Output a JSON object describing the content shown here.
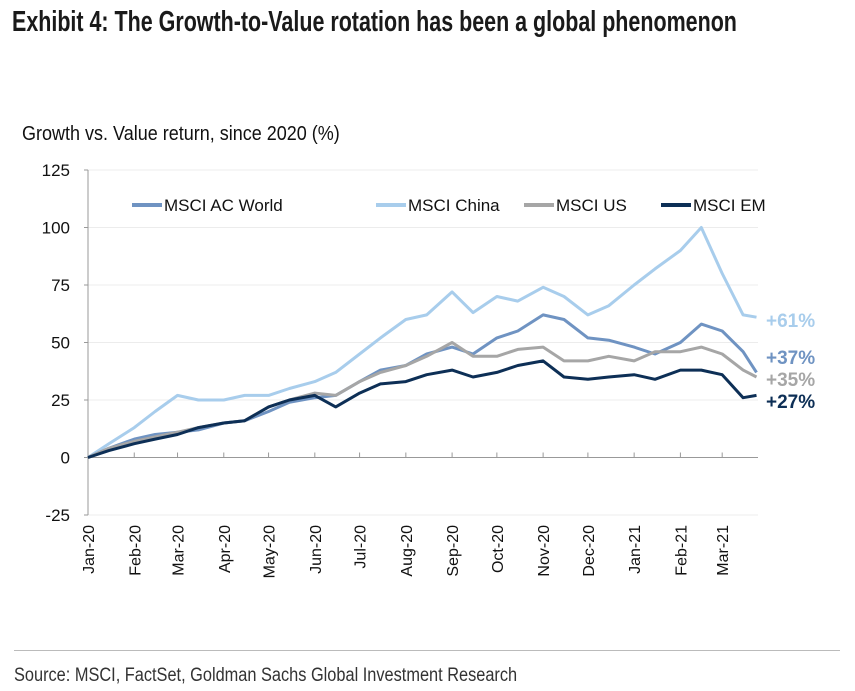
{
  "title": "Exhibit 4: The Growth-to-Value rotation has been a global phenomenon",
  "source": "Source: MSCI, FactSet, Goldman Sachs Global Investment Research",
  "chart_data": {
    "type": "line",
    "title": "",
    "ylabel": "Growth vs. Value return, since 2020 (%)",
    "xlabel": "",
    "ylim": [
      -25,
      125
    ],
    "yticks": [
      -25,
      0,
      25,
      50,
      75,
      100,
      125
    ],
    "xlim": [
      "2020-01-01",
      "2021-03-25"
    ],
    "xtick_labels": [
      "Jan-20",
      "Feb-20",
      "Mar-20",
      "Apr-20",
      "May-20",
      "Jun-20",
      "Jul-20",
      "Aug-20",
      "Sep-20",
      "Oct-20",
      "Nov-20",
      "Dec-20",
      "Jan-21",
      "Feb-21",
      "Mar-21"
    ],
    "xtick_dates": [
      "2020-01-01",
      "2020-02-01",
      "2020-03-01",
      "2020-04-01",
      "2020-05-01",
      "2020-06-01",
      "2020-07-01",
      "2020-08-01",
      "2020-09-01",
      "2020-10-01",
      "2020-11-01",
      "2020-12-01",
      "2021-01-01",
      "2021-02-01",
      "2021-03-01"
    ],
    "grid": "horizontal",
    "legend": "top",
    "x": [
      "2020-01-01",
      "2020-01-15",
      "2020-02-01",
      "2020-02-15",
      "2020-03-01",
      "2020-03-15",
      "2020-04-01",
      "2020-04-15",
      "2020-05-01",
      "2020-05-15",
      "2020-06-01",
      "2020-06-15",
      "2020-07-01",
      "2020-07-15",
      "2020-08-01",
      "2020-08-15",
      "2020-09-01",
      "2020-09-15",
      "2020-10-01",
      "2020-10-15",
      "2020-11-01",
      "2020-11-15",
      "2020-12-01",
      "2020-12-15",
      "2021-01-01",
      "2021-01-15",
      "2021-02-01",
      "2021-02-15",
      "2021-03-01",
      "2021-03-15",
      "2021-03-24"
    ],
    "series": [
      {
        "name": "MSCI AC World",
        "color": "#6f93c2",
        "end_label": "+37%",
        "values": [
          0,
          4,
          8,
          10,
          11,
          12,
          15,
          16,
          20,
          24,
          26,
          27,
          33,
          38,
          40,
          45,
          48,
          45,
          52,
          55,
          62,
          60,
          52,
          51,
          48,
          45,
          50,
          58,
          55,
          46,
          37
        ]
      },
      {
        "name": "MSCI China",
        "color": "#a8cdec",
        "end_label": "+61%",
        "values": [
          0,
          6,
          13,
          20,
          27,
          25,
          25,
          27,
          27,
          30,
          33,
          37,
          45,
          52,
          60,
          62,
          72,
          63,
          70,
          68,
          74,
          70,
          62,
          66,
          75,
          82,
          90,
          100,
          80,
          62,
          61
        ]
      },
      {
        "name": "MSCI US",
        "color": "#a6a6a6",
        "end_label": "+35%",
        "values": [
          0,
          4,
          7,
          9,
          11,
          13,
          15,
          16,
          22,
          25,
          28,
          27,
          33,
          37,
          40,
          44,
          50,
          44,
          44,
          47,
          48,
          42,
          42,
          44,
          42,
          46,
          46,
          48,
          45,
          38,
          35
        ]
      },
      {
        "name": "MSCI EM",
        "color": "#0d2f56",
        "end_label": "+27%",
        "values": [
          0,
          3,
          6,
          8,
          10,
          13,
          15,
          16,
          22,
          25,
          27,
          22,
          28,
          32,
          33,
          36,
          38,
          35,
          37,
          40,
          42,
          35,
          34,
          35,
          36,
          34,
          38,
          38,
          36,
          26,
          27
        ]
      }
    ]
  }
}
